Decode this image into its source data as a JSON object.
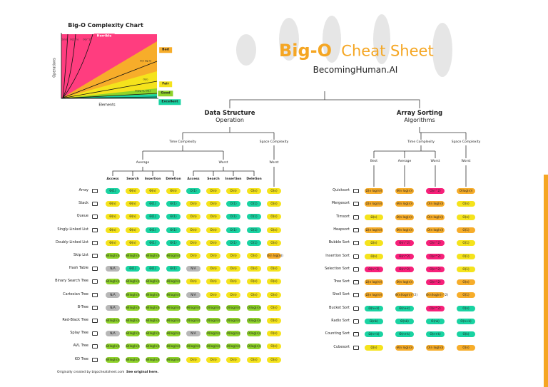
{
  "header": {
    "title_bold": "Big-O",
    "title_rest": "Cheat Sheet",
    "subtitle": "BecomingHuman.AI"
  },
  "mini_chart": {
    "title": "Big-O Complexity Chart",
    "x_label": "Elements",
    "y_label": "Operations",
    "zones": [
      {
        "label": "Horrible",
        "color": "#ff3d7f"
      },
      {
        "label": "Bad",
        "color": "#f7ad2a"
      },
      {
        "label": "Fair",
        "color": "#f5e31c"
      },
      {
        "label": "Good",
        "color": "#8fd32a"
      },
      {
        "label": "Excellent",
        "color": "#19d3a2"
      }
    ],
    "curves": [
      "O(n!)",
      "O(2^n)",
      "O(n^2)",
      "O(n log n)",
      "O(n)",
      "O(log n), O(1)"
    ]
  },
  "data_structures": {
    "title": "Data Structure",
    "subtitle": "Operation",
    "time": "Time Complexity",
    "space": "Space Complexity",
    "average": "Average",
    "worst": "Worst",
    "space_worst": "Worst",
    "columns": [
      "Access",
      "Search",
      "Insertion",
      "Deletion",
      "Access",
      "Search",
      "Insertion",
      "Deletion"
    ],
    "rows": [
      {
        "name": "Array",
        "cells": [
          "Θ(1)",
          "Θ(n)",
          "Θ(n)",
          "Θ(n)",
          "O(1)",
          "O(n)",
          "O(n)",
          "O(n)",
          "O(n)"
        ],
        "colors": [
          "#19d3a2",
          "#f5e31c",
          "#f5e31c",
          "#f5e31c",
          "#19d3a2",
          "#f5e31c",
          "#f5e31c",
          "#f5e31c",
          "#f5e31c"
        ]
      },
      {
        "name": "Stack",
        "cells": [
          "Θ(n)",
          "Θ(n)",
          "Θ(1)",
          "Θ(1)",
          "O(n)",
          "O(n)",
          "O(1)",
          "O(1)",
          "O(n)"
        ],
        "colors": [
          "#f5e31c",
          "#f5e31c",
          "#19d3a2",
          "#19d3a2",
          "#f5e31c",
          "#f5e31c",
          "#19d3a2",
          "#19d3a2",
          "#f5e31c"
        ]
      },
      {
        "name": "Queue",
        "cells": [
          "Θ(n)",
          "Θ(n)",
          "Θ(1)",
          "Θ(1)",
          "O(n)",
          "O(n)",
          "O(1)",
          "O(1)",
          "O(n)"
        ],
        "colors": [
          "#f5e31c",
          "#f5e31c",
          "#19d3a2",
          "#19d3a2",
          "#f5e31c",
          "#f5e31c",
          "#19d3a2",
          "#19d3a2",
          "#f5e31c"
        ]
      },
      {
        "name": "Singly-Linked List",
        "cells": [
          "Θ(n)",
          "Θ(n)",
          "Θ(1)",
          "Θ(1)",
          "O(n)",
          "O(n)",
          "O(1)",
          "O(1)",
          "O(n)"
        ],
        "colors": [
          "#f5e31c",
          "#f5e31c",
          "#19d3a2",
          "#19d3a2",
          "#f5e31c",
          "#f5e31c",
          "#19d3a2",
          "#19d3a2",
          "#f5e31c"
        ]
      },
      {
        "name": "Doubly-Linked List",
        "cells": [
          "Θ(n)",
          "Θ(n)",
          "Θ(1)",
          "Θ(1)",
          "O(n)",
          "O(n)",
          "O(1)",
          "O(1)",
          "O(n)"
        ],
        "colors": [
          "#f5e31c",
          "#f5e31c",
          "#19d3a2",
          "#19d3a2",
          "#f5e31c",
          "#f5e31c",
          "#19d3a2",
          "#19d3a2",
          "#f5e31c"
        ]
      },
      {
        "name": "Skip List",
        "cells": [
          "Θ(log(n))",
          "Θ(log(n))",
          "Θ(log(n))",
          "Θ(log(n))",
          "O(n)",
          "O(n)",
          "O(n)",
          "O(n)",
          "O(n log(n))"
        ],
        "colors": [
          "#8fd32a",
          "#8fd32a",
          "#8fd32a",
          "#8fd32a",
          "#f5e31c",
          "#f5e31c",
          "#f5e31c",
          "#f5e31c",
          "#f7ad2a"
        ]
      },
      {
        "name": "Hash Table",
        "cells": [
          "N/A",
          "Θ(1)",
          "Θ(1)",
          "Θ(1)",
          "N/A",
          "O(n)",
          "O(n)",
          "O(n)",
          "O(n)"
        ],
        "colors": [
          "#b7b7b7",
          "#19d3a2",
          "#19d3a2",
          "#19d3a2",
          "#b7b7b7",
          "#f5e31c",
          "#f5e31c",
          "#f5e31c",
          "#f5e31c"
        ]
      },
      {
        "name": "Binary Search Tree",
        "cells": [
          "Θ(log(n))",
          "Θ(log(n))",
          "Θ(log(n))",
          "Θ(log(n))",
          "O(n)",
          "O(n)",
          "O(n)",
          "O(n)",
          "O(n)"
        ],
        "colors": [
          "#8fd32a",
          "#8fd32a",
          "#8fd32a",
          "#8fd32a",
          "#f5e31c",
          "#f5e31c",
          "#f5e31c",
          "#f5e31c",
          "#f5e31c"
        ]
      },
      {
        "name": "Cartesian Tree",
        "cells": [
          "N/A",
          "Θ(log(n))",
          "Θ(log(n))",
          "Θ(log(n))",
          "N/A",
          "O(n)",
          "O(n)",
          "O(n)",
          "O(n)"
        ],
        "colors": [
          "#b7b7b7",
          "#8fd32a",
          "#8fd32a",
          "#8fd32a",
          "#b7b7b7",
          "#f5e31c",
          "#f5e31c",
          "#f5e31c",
          "#f5e31c"
        ]
      },
      {
        "name": "B-Tree",
        "cells": [
          "N/A",
          "Θ(log(n))",
          "Θ(log(n))",
          "Θ(log(n))",
          "Θ(log(n))",
          "O(log(n))",
          "O(log(n))",
          "O(log(n))",
          "O(n)"
        ],
        "colors": [
          "#b7b7b7",
          "#8fd32a",
          "#8fd32a",
          "#8fd32a",
          "#8fd32a",
          "#8fd32a",
          "#8fd32a",
          "#8fd32a",
          "#f5e31c"
        ]
      },
      {
        "name": "Red-Black Tree",
        "cells": [
          "Θ(log(n))",
          "Θ(log(n))",
          "Θ(log(n))",
          "Θ(log(n))",
          "O(log(n))",
          "O(log(n))",
          "O(log(n))",
          "O(log(n))",
          "O(n)"
        ],
        "colors": [
          "#8fd32a",
          "#8fd32a",
          "#8fd32a",
          "#8fd32a",
          "#8fd32a",
          "#8fd32a",
          "#8fd32a",
          "#8fd32a",
          "#f5e31c"
        ]
      },
      {
        "name": "Splay Tree",
        "cells": [
          "N/A",
          "Θ(log(n))",
          "Θ(log(n))",
          "Θ(log(n))",
          "N/A",
          "O(log(n))",
          "O(log(n))",
          "O(log(n))",
          "O(n)"
        ],
        "colors": [
          "#b7b7b7",
          "#8fd32a",
          "#8fd32a",
          "#8fd32a",
          "#b7b7b7",
          "#8fd32a",
          "#8fd32a",
          "#8fd32a",
          "#f5e31c"
        ]
      },
      {
        "name": "AVL Tree",
        "cells": [
          "Θ(log(n))",
          "Θ(log(n))",
          "Θ(log(n))",
          "Θ(log(n))",
          "O(log(n))",
          "O(log(n))",
          "O(log(n))",
          "O(log(n))",
          "O(n)"
        ],
        "colors": [
          "#8fd32a",
          "#8fd32a",
          "#8fd32a",
          "#8fd32a",
          "#8fd32a",
          "#8fd32a",
          "#8fd32a",
          "#8fd32a",
          "#f5e31c"
        ]
      },
      {
        "name": "KD Tree",
        "cells": [
          "Θ(log(n))",
          "Θ(log(n))",
          "Θ(log(n))",
          "Θ(log(n))",
          "O(n)",
          "O(n)",
          "O(n)",
          "O(n)",
          "O(n)"
        ],
        "colors": [
          "#8fd32a",
          "#8fd32a",
          "#8fd32a",
          "#8fd32a",
          "#f5e31c",
          "#f5e31c",
          "#f5e31c",
          "#f5e31c",
          "#f5e31c"
        ]
      }
    ]
  },
  "sorting": {
    "title": "Array Sorting",
    "subtitle": "Algorithms",
    "time": "Time Complexity",
    "space": "Space Complexity",
    "columns": [
      "Best",
      "Average",
      "Worst",
      "Worst"
    ],
    "rows": [
      {
        "name": "Quicksort",
        "cells": [
          "Ω(n log(n))",
          "Θ(n log(n))",
          "O(n^2)",
          "O(log(n))"
        ],
        "colors": [
          "#f7ad2a",
          "#f7ad2a",
          "#f7207a",
          "#f7ad2a"
        ]
      },
      {
        "name": "Mergesort",
        "cells": [
          "Ω(n log(n))",
          "Θ(n log(n))",
          "O(n log(n))",
          "O(n)"
        ],
        "colors": [
          "#f7ad2a",
          "#f7ad2a",
          "#f7ad2a",
          "#f5e31c"
        ]
      },
      {
        "name": "Timsort",
        "cells": [
          "Ω(n)",
          "Θ(n log(n))",
          "O(n log(n))",
          "O(n)"
        ],
        "colors": [
          "#f5e31c",
          "#f7ad2a",
          "#f7ad2a",
          "#f5e31c"
        ]
      },
      {
        "name": "Heapsort",
        "cells": [
          "Ω(n log(n))",
          "Θ(n log(n))",
          "O(n log(n))",
          "O(1)"
        ],
        "colors": [
          "#f7ad2a",
          "#f7ad2a",
          "#f7ad2a",
          "#f7ad2a"
        ]
      },
      {
        "name": "Bubble Sort",
        "cells": [
          "Ω(n)",
          "Θ(n^2)",
          "O(n^2)",
          "O(1)"
        ],
        "colors": [
          "#f5e31c",
          "#f7207a",
          "#f7207a",
          "#f5e31c"
        ]
      },
      {
        "name": "Insertion Sort",
        "cells": [
          "Ω(n)",
          "Θ(n^2)",
          "O(n^2)",
          "O(1)"
        ],
        "colors": [
          "#f5e31c",
          "#f7207a",
          "#f7207a",
          "#f5e31c"
        ]
      },
      {
        "name": "Selection Sort",
        "cells": [
          "Ω(n^2)",
          "Θ(n^2)",
          "O(n^2)",
          "O(1)"
        ],
        "colors": [
          "#f7207a",
          "#f7207a",
          "#f7207a",
          "#f5e31c"
        ]
      },
      {
        "name": "Tree Sort",
        "cells": [
          "Ω(n log(n))",
          "Θ(n log(n))",
          "O(n^2)",
          "O(n)"
        ],
        "colors": [
          "#f7ad2a",
          "#f7ad2a",
          "#f7207a",
          "#f7ad2a"
        ]
      },
      {
        "name": "Shell Sort",
        "cells": [
          "Ω(n log(n))",
          "Θ(n(log(n))^2)",
          "O(n(log(n))^2)",
          "O(1)"
        ],
        "colors": [
          "#f7ad2a",
          "#f7ad2a",
          "#f7ad2a",
          "#f7ad2a"
        ]
      },
      {
        "name": "Bucket Sort",
        "cells": [
          "Ω(n+k)",
          "Θ(n+k)",
          "O(n^2)",
          "O(n)"
        ],
        "colors": [
          "#19d3a2",
          "#19d3a2",
          "#f7207a",
          "#19d3a2"
        ]
      },
      {
        "name": "Radix Sort",
        "cells": [
          "Ω(nk)",
          "Θ(nk)",
          "O(nk)",
          "O(n+k)"
        ],
        "colors": [
          "#19d3a2",
          "#19d3a2",
          "#19d3a2",
          "#19d3a2"
        ]
      },
      {
        "name": "Counting Sort",
        "cells": [
          "Ω(n+k)",
          "Θ(n+k)",
          "O(n+k)",
          "O(k)"
        ],
        "colors": [
          "#19d3a2",
          "#19d3a2",
          "#19d3a2",
          "#19d3a2"
        ]
      },
      {
        "name": "Cubesort",
        "cells": [
          "Ω(n)",
          "Θ(n log(n))",
          "O(n log(n))",
          "O(n)"
        ],
        "colors": [
          "#f5e31c",
          "#f7ad2a",
          "#f7ad2a",
          "#f7ad2a"
        ]
      }
    ]
  },
  "footer": {
    "credit": "Originally created by bigocheatsheet.com",
    "link": "See original here."
  }
}
